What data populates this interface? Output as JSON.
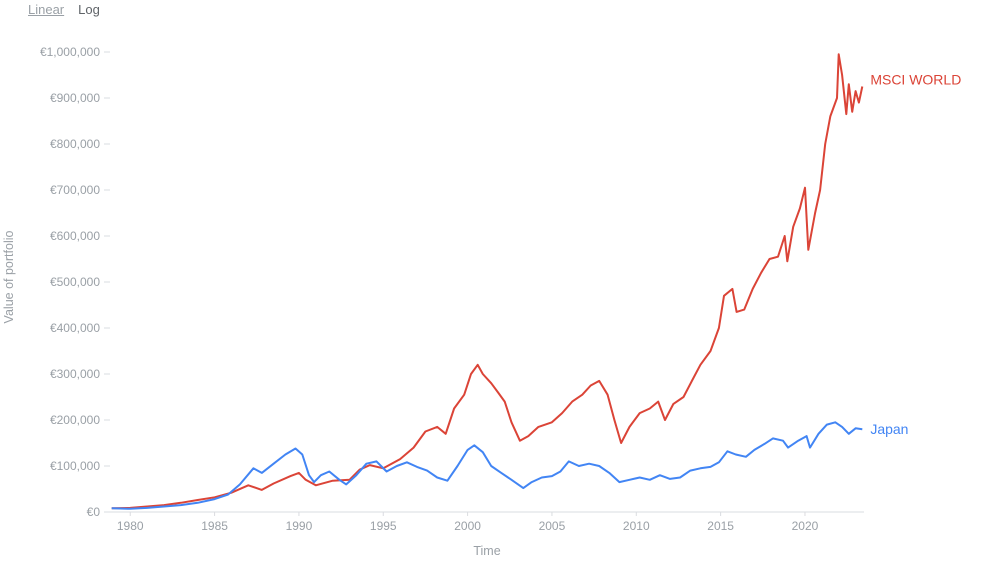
{
  "scale_toggle": {
    "linear": "Linear",
    "log": "Log",
    "selected": "Linear"
  },
  "chart_data": {
    "type": "line",
    "xlabel": "Time",
    "ylabel": "Value of portfolio",
    "xlim": [
      1978.8,
      2023.5
    ],
    "ylim": [
      0,
      1000000
    ],
    "x_ticks": [
      1980,
      1985,
      1990,
      1995,
      2000,
      2005,
      2010,
      2015,
      2020
    ],
    "y_ticks": [
      {
        "value": 0,
        "label": "€0"
      },
      {
        "value": 100000,
        "label": "€100,000"
      },
      {
        "value": 200000,
        "label": "€200,000"
      },
      {
        "value": 300000,
        "label": "€300,000"
      },
      {
        "value": 400000,
        "label": "€400,000"
      },
      {
        "value": 500000,
        "label": "€500,000"
      },
      {
        "value": 600000,
        "label": "€600,000"
      },
      {
        "value": 700000,
        "label": "€700,000"
      },
      {
        "value": 800000,
        "label": "€800,000"
      },
      {
        "value": 900000,
        "label": "€900,000"
      },
      {
        "value": 1000000,
        "label": "€1,000,000"
      }
    ],
    "series": [
      {
        "name": "MSCI WORLD",
        "color": "#db4437",
        "points": [
          [
            1978.9,
            8000
          ],
          [
            1980,
            9000
          ],
          [
            1981,
            12000
          ],
          [
            1982,
            15000
          ],
          [
            1983,
            20000
          ],
          [
            1984,
            26000
          ],
          [
            1985,
            32000
          ],
          [
            1986,
            42000
          ],
          [
            1987,
            58000
          ],
          [
            1987.8,
            48000
          ],
          [
            1988.5,
            62000
          ],
          [
            1989.5,
            78000
          ],
          [
            1990.0,
            85000
          ],
          [
            1990.4,
            70000
          ],
          [
            1991,
            58000
          ],
          [
            1992,
            68000
          ],
          [
            1993,
            70000
          ],
          [
            1993.6,
            92000
          ],
          [
            1994.2,
            102000
          ],
          [
            1995,
            95000
          ],
          [
            1996,
            115000
          ],
          [
            1996.8,
            140000
          ],
          [
            1997.5,
            175000
          ],
          [
            1998.2,
            185000
          ],
          [
            1998.7,
            170000
          ],
          [
            1999.2,
            225000
          ],
          [
            1999.8,
            255000
          ],
          [
            2000.2,
            300000
          ],
          [
            2000.6,
            320000
          ],
          [
            2000.9,
            300000
          ],
          [
            2001.4,
            280000
          ],
          [
            2001.8,
            260000
          ],
          [
            2002.2,
            240000
          ],
          [
            2002.6,
            195000
          ],
          [
            2003.1,
            155000
          ],
          [
            2003.6,
            165000
          ],
          [
            2004.2,
            185000
          ],
          [
            2005,
            195000
          ],
          [
            2005.6,
            215000
          ],
          [
            2006.2,
            240000
          ],
          [
            2006.8,
            255000
          ],
          [
            2007.3,
            275000
          ],
          [
            2007.8,
            285000
          ],
          [
            2008.3,
            255000
          ],
          [
            2008.7,
            200000
          ],
          [
            2009.1,
            150000
          ],
          [
            2009.6,
            185000
          ],
          [
            2010.2,
            215000
          ],
          [
            2010.8,
            225000
          ],
          [
            2011.3,
            240000
          ],
          [
            2011.7,
            200000
          ],
          [
            2012.2,
            235000
          ],
          [
            2012.8,
            250000
          ],
          [
            2013.3,
            285000
          ],
          [
            2013.8,
            320000
          ],
          [
            2014.4,
            350000
          ],
          [
            2014.9,
            400000
          ],
          [
            2015.2,
            470000
          ],
          [
            2015.7,
            485000
          ],
          [
            2015.95,
            435000
          ],
          [
            2016.4,
            440000
          ],
          [
            2016.9,
            485000
          ],
          [
            2017.4,
            520000
          ],
          [
            2017.9,
            550000
          ],
          [
            2018.4,
            555000
          ],
          [
            2018.8,
            600000
          ],
          [
            2018.95,
            545000
          ],
          [
            2019.3,
            620000
          ],
          [
            2019.7,
            660000
          ],
          [
            2020.0,
            705000
          ],
          [
            2020.2,
            570000
          ],
          [
            2020.6,
            650000
          ],
          [
            2020.9,
            700000
          ],
          [
            2021.2,
            800000
          ],
          [
            2021.5,
            860000
          ],
          [
            2021.9,
            900000
          ],
          [
            2022.0,
            995000
          ],
          [
            2022.2,
            950000
          ],
          [
            2022.45,
            865000
          ],
          [
            2022.6,
            930000
          ],
          [
            2022.8,
            870000
          ],
          [
            2023.0,
            915000
          ],
          [
            2023.2,
            890000
          ],
          [
            2023.4,
            925000
          ]
        ]
      },
      {
        "name": "Japan",
        "color": "#4285f4",
        "points": [
          [
            1978.9,
            8000
          ],
          [
            1980,
            7000
          ],
          [
            1981,
            9000
          ],
          [
            1982,
            12000
          ],
          [
            1983,
            15000
          ],
          [
            1984,
            20000
          ],
          [
            1985,
            28000
          ],
          [
            1985.8,
            38000
          ],
          [
            1986.5,
            60000
          ],
          [
            1987.3,
            95000
          ],
          [
            1987.8,
            85000
          ],
          [
            1988.5,
            105000
          ],
          [
            1989.2,
            125000
          ],
          [
            1989.8,
            138000
          ],
          [
            1990.2,
            125000
          ],
          [
            1990.6,
            80000
          ],
          [
            1990.9,
            65000
          ],
          [
            1991.3,
            80000
          ],
          [
            1991.8,
            88000
          ],
          [
            1992.4,
            70000
          ],
          [
            1992.8,
            60000
          ],
          [
            1993.4,
            80000
          ],
          [
            1994.0,
            105000
          ],
          [
            1994.6,
            110000
          ],
          [
            1995.2,
            88000
          ],
          [
            1995.8,
            100000
          ],
          [
            1996.4,
            108000
          ],
          [
            1997.0,
            98000
          ],
          [
            1997.6,
            90000
          ],
          [
            1998.2,
            75000
          ],
          [
            1998.8,
            68000
          ],
          [
            1999.4,
            100000
          ],
          [
            2000.0,
            135000
          ],
          [
            2000.4,
            145000
          ],
          [
            2000.9,
            130000
          ],
          [
            2001.4,
            100000
          ],
          [
            2002.0,
            85000
          ],
          [
            2002.6,
            70000
          ],
          [
            2003.3,
            52000
          ],
          [
            2003.8,
            65000
          ],
          [
            2004.4,
            75000
          ],
          [
            2005.0,
            78000
          ],
          [
            2005.5,
            88000
          ],
          [
            2006.0,
            110000
          ],
          [
            2006.6,
            100000
          ],
          [
            2007.2,
            105000
          ],
          [
            2007.8,
            100000
          ],
          [
            2008.4,
            85000
          ],
          [
            2009.0,
            65000
          ],
          [
            2009.6,
            70000
          ],
          [
            2010.2,
            75000
          ],
          [
            2010.8,
            70000
          ],
          [
            2011.4,
            80000
          ],
          [
            2012.0,
            72000
          ],
          [
            2012.6,
            75000
          ],
          [
            2013.2,
            90000
          ],
          [
            2013.8,
            95000
          ],
          [
            2014.4,
            98000
          ],
          [
            2014.9,
            108000
          ],
          [
            2015.4,
            132000
          ],
          [
            2015.9,
            125000
          ],
          [
            2016.5,
            120000
          ],
          [
            2017.0,
            135000
          ],
          [
            2017.6,
            148000
          ],
          [
            2018.1,
            160000
          ],
          [
            2018.7,
            155000
          ],
          [
            2019.0,
            140000
          ],
          [
            2019.6,
            155000
          ],
          [
            2020.1,
            165000
          ],
          [
            2020.3,
            140000
          ],
          [
            2020.8,
            170000
          ],
          [
            2021.3,
            190000
          ],
          [
            2021.8,
            195000
          ],
          [
            2022.2,
            185000
          ],
          [
            2022.6,
            170000
          ],
          [
            2023.0,
            182000
          ],
          [
            2023.4,
            180000
          ]
        ]
      }
    ]
  }
}
